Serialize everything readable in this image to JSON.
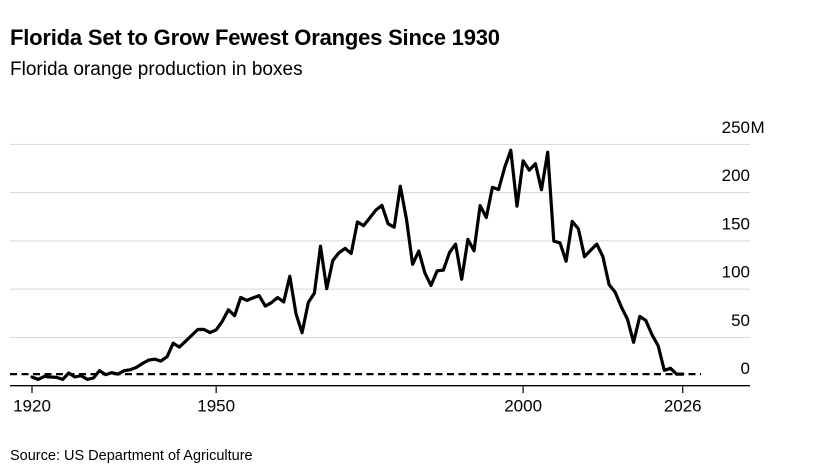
{
  "header": {
    "title": "Florida Set to Grow Fewest Oranges Since 1930",
    "subtitle": "Florida orange production in boxes"
  },
  "footer": {
    "source": "Source: US Department of Agriculture"
  },
  "colors": {
    "background": "#ffffff",
    "text": "#000000",
    "line": "#000000",
    "grid": "#d7d7d7",
    "axis": "#000000",
    "reference_line": "#000000"
  },
  "chart_data": {
    "type": "line",
    "title": "Florida Set to Grow Fewest Oranges Since 1930",
    "subtitle": "Florida orange production in boxes",
    "xlabel": "",
    "ylabel": "",
    "unit": "million boxes",
    "grid": "horizontal",
    "legend": "none",
    "x_ticks": [
      1920,
      1950,
      2000,
      2026
    ],
    "y_ticks": [
      0,
      50,
      100,
      150,
      200,
      250
    ],
    "y_unit_suffix": "M",
    "xlim": [
      1916,
      2037
    ],
    "ylim": [
      0,
      250
    ],
    "reference_line": {
      "value": 12,
      "style": "dashed"
    },
    "series": [
      {
        "name": "Florida orange production",
        "x": [
          1920,
          1921,
          1922,
          1923,
          1924,
          1925,
          1926,
          1927,
          1928,
          1929,
          1930,
          1931,
          1932,
          1933,
          1934,
          1935,
          1936,
          1937,
          1938,
          1939,
          1940,
          1941,
          1942,
          1943,
          1944,
          1945,
          1946,
          1947,
          1948,
          1949,
          1950,
          1951,
          1952,
          1953,
          1954,
          1955,
          1956,
          1957,
          1958,
          1959,
          1960,
          1961,
          1962,
          1963,
          1964,
          1965,
          1966,
          1967,
          1968,
          1969,
          1970,
          1971,
          1972,
          1973,
          1974,
          1975,
          1976,
          1977,
          1978,
          1979,
          1980,
          1981,
          1982,
          1983,
          1984,
          1985,
          1986,
          1987,
          1988,
          1989,
          1990,
          1991,
          1992,
          1993,
          1994,
          1995,
          1996,
          1997,
          1998,
          1999,
          2000,
          2001,
          2002,
          2003,
          2004,
          2005,
          2006,
          2007,
          2008,
          2009,
          2010,
          2011,
          2012,
          2013,
          2014,
          2015,
          2016,
          2017,
          2018,
          2019,
          2020,
          2021,
          2022,
          2023,
          2024,
          2025,
          2026
        ],
        "values": [
          9.0,
          6.5,
          9.6,
          9.0,
          8.6,
          6.5,
          13.2,
          9.0,
          10.5,
          6.5,
          8.0,
          15.5,
          11.5,
          13.5,
          12.0,
          15.5,
          16.5,
          19.0,
          23.0,
          26.5,
          27.5,
          25.5,
          30.0,
          44.0,
          40.0,
          46.0,
          52.0,
          58.2,
          58.3,
          55.0,
          57.9,
          66.7,
          78.6,
          72.5,
          91.4,
          88.4,
          91.0,
          93.3,
          82.5,
          86.0,
          91.4,
          86.7,
          113.4,
          74.5,
          54.9,
          86.2,
          95.9,
          144.5,
          100.5,
          129.7,
          137.7,
          142.3,
          137.0,
          169.7,
          165.8,
          173.6,
          181.9,
          186.8,
          167.7,
          164.2,
          206.7,
          172.4,
          125.8,
          139.6,
          116.7,
          103.9,
          119.0,
          119.7,
          138.0,
          146.6,
          110.2,
          151.6,
          139.8,
          186.6,
          174.4,
          205.5,
          203.3,
          226.2,
          244.0,
          186.0,
          233.0,
          223.3,
          230.0,
          203.0,
          242.0,
          149.8,
          147.9,
          129.0,
          170.2,
          162.5,
          133.7,
          140.3,
          146.7,
          133.6,
          104.7,
          96.9,
          81.6,
          68.8,
          45.0,
          71.8,
          67.4,
          52.8,
          41.2,
          15.8,
          18.0,
          12.0,
          12.0
        ]
      }
    ]
  }
}
